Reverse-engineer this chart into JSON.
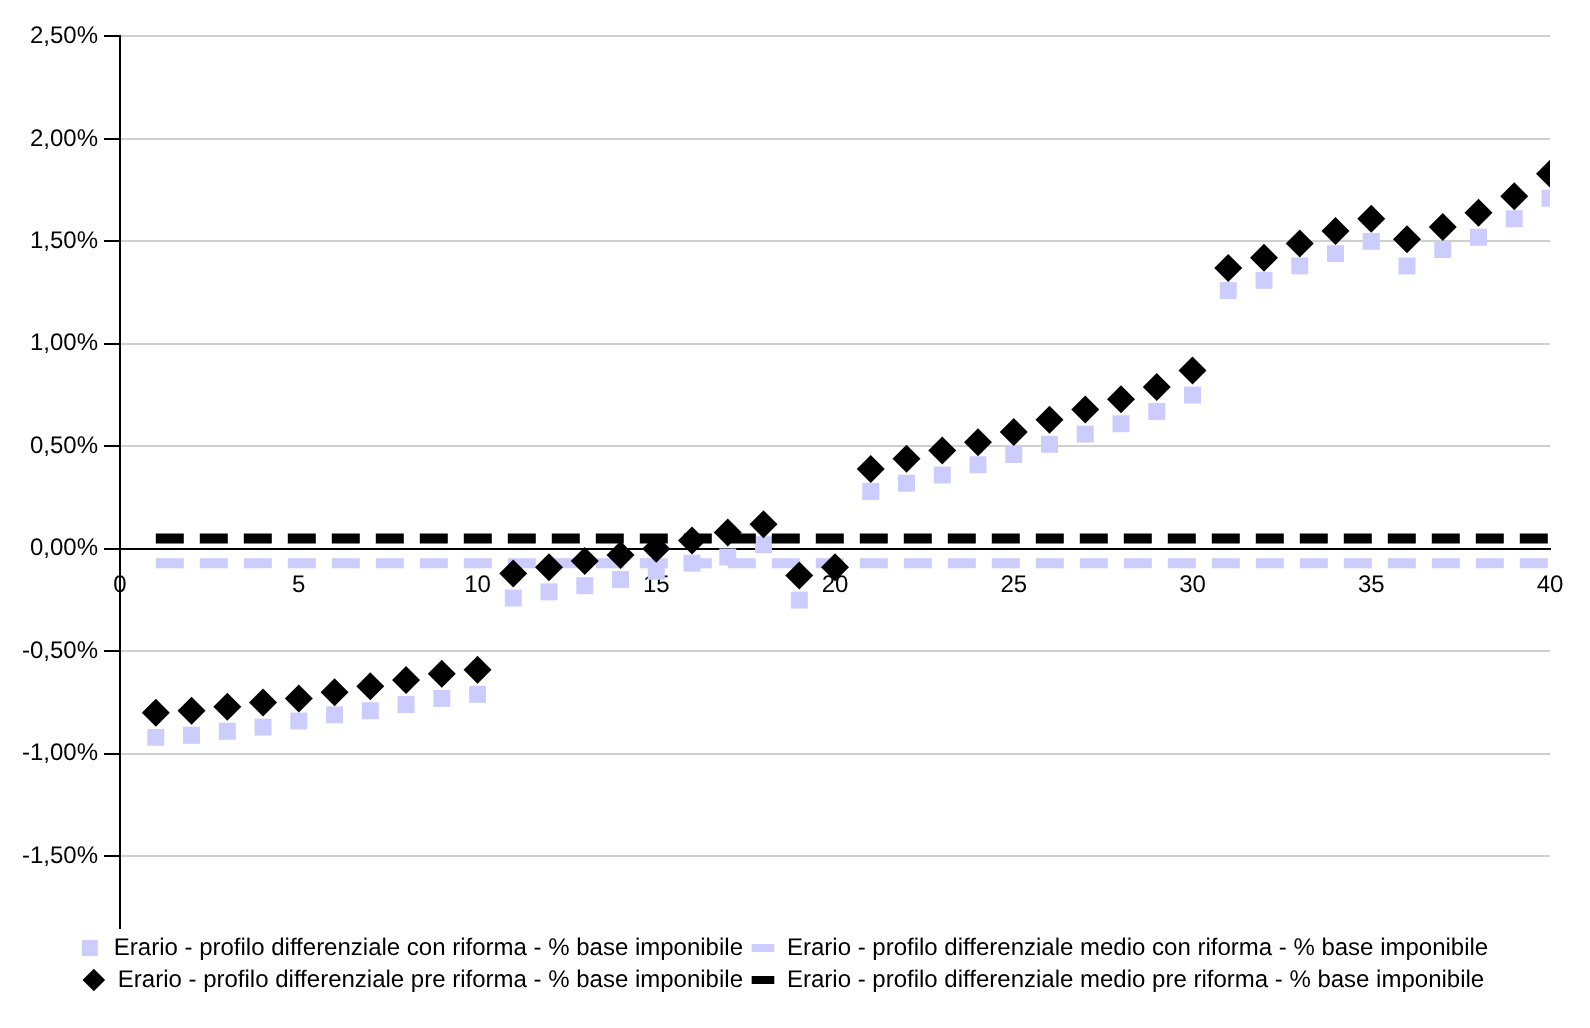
{
  "chart_data": {
    "type": "scatter",
    "xlim": [
      0,
      40
    ],
    "xticks": [
      0,
      5,
      10,
      15,
      20,
      25,
      30,
      35,
      40
    ],
    "ylim": [
      -1.85,
      2.5
    ],
    "yticks": [
      {
        "value": -1.5,
        "label": "-1,50%"
      },
      {
        "value": -1,
        "label": "-1,00%"
      },
      {
        "value": -0.5,
        "label": "-0,50%"
      },
      {
        "value": 0,
        "label": "0,00%"
      },
      {
        "value": 0.5,
        "label": "0,50%"
      },
      {
        "value": 1,
        "label": "1,00%"
      },
      {
        "value": 1.5,
        "label": "1,50%"
      },
      {
        "value": 2,
        "label": "2,00%"
      },
      {
        "value": 2.5,
        "label": "2,50%"
      }
    ],
    "grid": "y",
    "legend": "bottom",
    "x": [
      1,
      2,
      3,
      4,
      5,
      6,
      7,
      8,
      9,
      10,
      11,
      12,
      13,
      14,
      15,
      16,
      17,
      18,
      19,
      20,
      21,
      22,
      23,
      24,
      25,
      26,
      27,
      28,
      29,
      30,
      31,
      32,
      33,
      34,
      35,
      36,
      37,
      38,
      39,
      40
    ],
    "series": [
      {
        "name": "Erario - profilo differenziale con riforma - % base imponibile",
        "type": "scatter",
        "marker": "square",
        "color": "#ccccff",
        "values": [
          -0.92,
          -0.91,
          -0.89,
          -0.87,
          -0.84,
          -0.81,
          -0.79,
          -0.76,
          -0.73,
          -0.71,
          -0.24,
          -0.21,
          -0.18,
          -0.15,
          -0.11,
          -0.07,
          -0.04,
          0.02,
          -0.25,
          null,
          0.28,
          0.32,
          0.36,
          0.41,
          0.46,
          0.51,
          0.56,
          0.61,
          0.67,
          0.75,
          1.26,
          1.31,
          1.38,
          1.44,
          1.5,
          1.38,
          1.46,
          1.52,
          1.61,
          1.71
        ]
      },
      {
        "name": "Erario - profilo differenziale medio con riforma - % base imponibile",
        "type": "line",
        "marker": "none",
        "line_style": "dashed",
        "color": "#ccccff",
        "values": [
          -0.07,
          -0.07,
          -0.07,
          -0.07,
          -0.07,
          -0.07,
          -0.07,
          -0.07,
          -0.07,
          -0.07,
          -0.07,
          -0.07,
          -0.07,
          -0.07,
          -0.07,
          -0.07,
          -0.07,
          -0.07,
          -0.07,
          -0.07,
          -0.07,
          -0.07,
          -0.07,
          -0.07,
          -0.07,
          -0.07,
          -0.07,
          -0.07,
          -0.07,
          -0.07,
          -0.07,
          -0.07,
          -0.07,
          -0.07,
          -0.07,
          -0.07,
          -0.07,
          -0.07,
          -0.07,
          -0.07
        ]
      },
      {
        "name": "Erario - profilo differenziale pre riforma - % base imponibile",
        "type": "scatter",
        "marker": "diamond",
        "color": "#000000",
        "values": [
          -0.8,
          -0.79,
          -0.77,
          -0.75,
          -0.73,
          -0.7,
          -0.67,
          -0.64,
          -0.61,
          -0.59,
          -0.12,
          -0.09,
          -0.06,
          -0.03,
          0.0,
          0.04,
          0.08,
          0.12,
          -0.13,
          -0.09,
          0.39,
          0.44,
          0.48,
          0.52,
          0.57,
          0.63,
          0.68,
          0.73,
          0.79,
          0.87,
          1.37,
          1.42,
          1.49,
          1.55,
          1.61,
          1.51,
          1.57,
          1.64,
          1.72,
          1.83
        ]
      },
      {
        "name": "Erario - profilo differenziale medio pre riforma - % base imponibile",
        "type": "line",
        "marker": "none",
        "line_style": "dashed",
        "color": "#000000",
        "values": [
          0.05,
          0.05,
          0.05,
          0.05,
          0.05,
          0.05,
          0.05,
          0.05,
          0.05,
          0.05,
          0.05,
          0.05,
          0.05,
          0.05,
          0.05,
          0.05,
          0.05,
          0.05,
          0.05,
          0.05,
          0.05,
          0.05,
          0.05,
          0.05,
          0.05,
          0.05,
          0.05,
          0.05,
          0.05,
          0.05,
          0.05,
          0.05,
          0.05,
          0.05,
          0.05,
          0.05,
          0.05,
          0.05,
          0.05,
          0.05
        ]
      }
    ]
  }
}
